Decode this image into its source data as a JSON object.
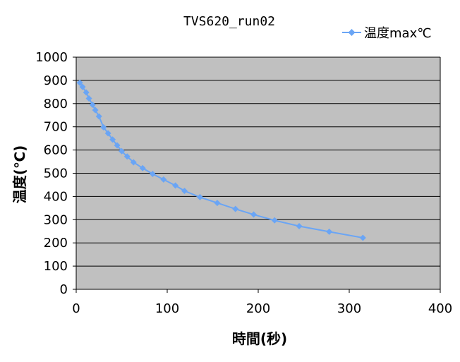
{
  "chart_data": {
    "type": "scatter",
    "title": "TVS620_run02",
    "xlabel": "時間(秒)",
    "ylabel": "温度(℃)",
    "xlim": [
      0,
      400
    ],
    "ylim": [
      0,
      1000
    ],
    "xticks": [
      "0",
      "100",
      "200",
      "300",
      "400"
    ],
    "yticks": [
      "0",
      "100",
      "200",
      "300",
      "400",
      "500",
      "600",
      "700",
      "800",
      "900",
      "1000"
    ],
    "grid": true,
    "legend_position": "top-right",
    "series": [
      {
        "name": "温度max℃",
        "color": "#6aa5f5",
        "marker": "diamond",
        "line": true,
        "points": [
          [
            4,
            890
          ],
          [
            7,
            872
          ],
          [
            11,
            848
          ],
          [
            14,
            822
          ],
          [
            18,
            795
          ],
          [
            21,
            772
          ],
          [
            25,
            745
          ],
          [
            30,
            698
          ],
          [
            35,
            672
          ],
          [
            40,
            645
          ],
          [
            45,
            620
          ],
          [
            50,
            595
          ],
          [
            56,
            572
          ],
          [
            63,
            547
          ],
          [
            73,
            522
          ],
          [
            84,
            497
          ],
          [
            96,
            473
          ],
          [
            109,
            447
          ],
          [
            119,
            424
          ],
          [
            136,
            397
          ],
          [
            155,
            372
          ],
          [
            175,
            346
          ],
          [
            195,
            322
          ],
          [
            218,
            297
          ],
          [
            245,
            272
          ],
          [
            278,
            248
          ],
          [
            315,
            222
          ]
        ]
      }
    ]
  }
}
